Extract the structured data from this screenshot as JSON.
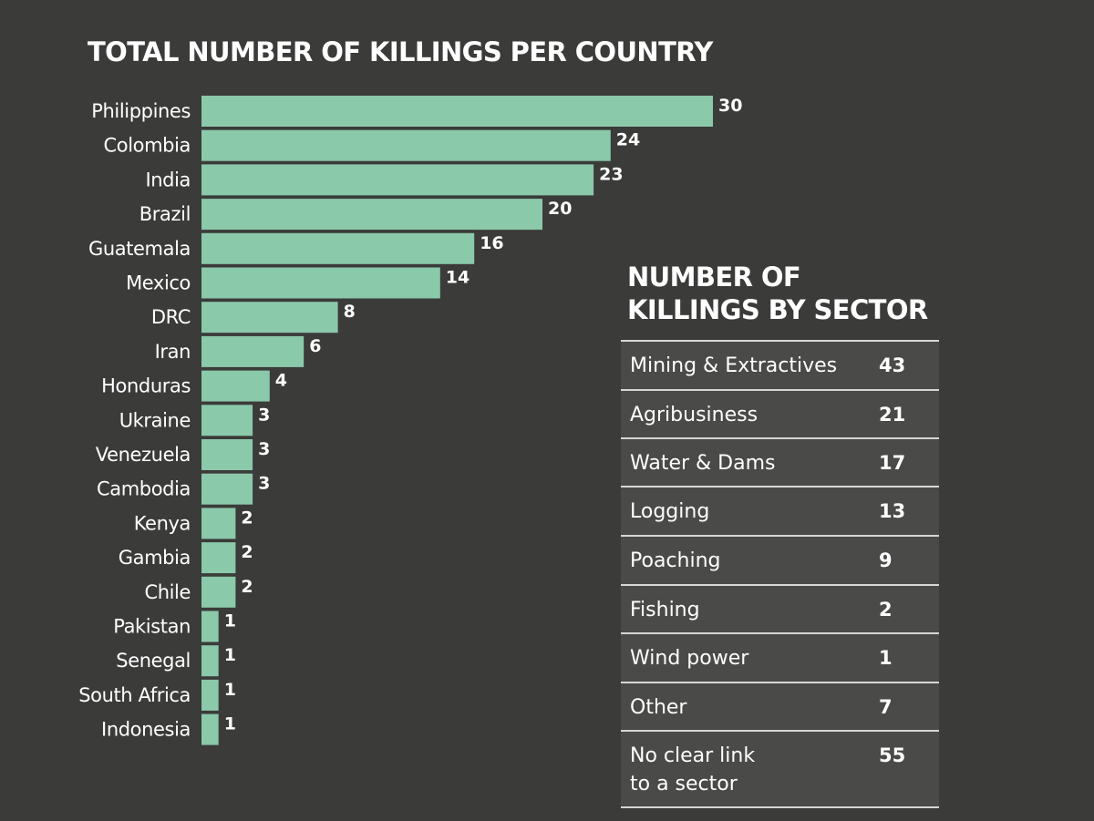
{
  "chart_data": [
    {
      "type": "bar",
      "orientation": "horizontal",
      "title": "TOTAL NUMBER OF KILLINGS PER COUNTRY",
      "categories": [
        "Philippines",
        "Colombia",
        "India",
        "Brazil",
        "Guatemala",
        "Mexico",
        "DRC",
        "Iran",
        "Honduras",
        "Ukraine",
        "Venezuela",
        "Cambodia",
        "Kenya",
        "Gambia",
        "Chile",
        "Pakistan",
        "Senegal",
        "South Africa",
        "Indonesia"
      ],
      "values": [
        30,
        24,
        23,
        20,
        16,
        14,
        8,
        6,
        4,
        3,
        3,
        3,
        2,
        2,
        2,
        1,
        1,
        1,
        1
      ],
      "xlim": [
        0,
        30
      ],
      "grid": false,
      "data_labels": true,
      "colors": {
        "bar": "#8ac9aa",
        "background": "#3b3b3a",
        "text": "#ffffff"
      }
    },
    {
      "type": "table",
      "title": "NUMBER OF KILLINGS BY SECTOR",
      "title_lines": [
        "NUMBER OF",
        "KILLINGS BY SECTOR"
      ],
      "rows": [
        {
          "sector": "Mining & Extractives",
          "value": "43"
        },
        {
          "sector": "Agribusiness",
          "value": "21"
        },
        {
          "sector": "Water & Dams",
          "value": "17"
        },
        {
          "sector": "Logging",
          "value": "13"
        },
        {
          "sector": "Poaching",
          "value": "9"
        },
        {
          "sector": "Fishing",
          "value": "2"
        },
        {
          "sector": "Wind power",
          "value": "1"
        },
        {
          "sector": "Other",
          "value": "7"
        },
        {
          "sector": "No clear link to a sector",
          "sector_lines": [
            "No clear link",
            "to a sector"
          ],
          "value": "55"
        }
      ],
      "colors": {
        "background": "#4a4a49",
        "rule": "#d6d6d6",
        "text": "#ffffff"
      }
    }
  ]
}
